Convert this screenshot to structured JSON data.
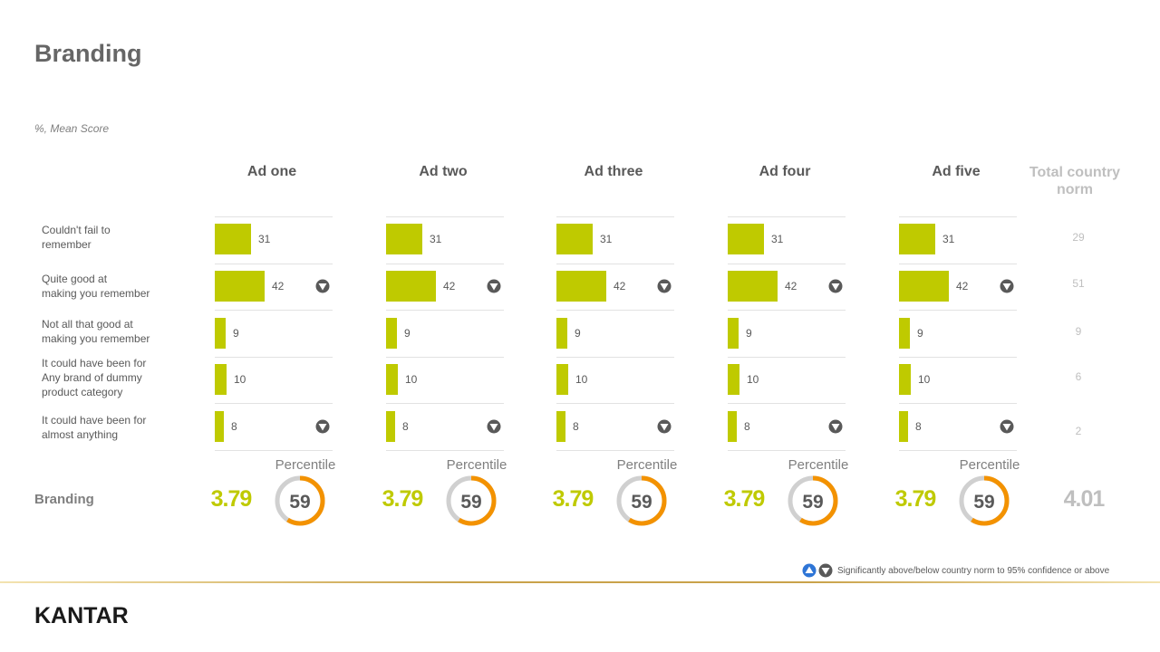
{
  "title": "Branding",
  "subtitle": "%, Mean  Score",
  "norm_header": "Total country norm",
  "branding_label": "Branding",
  "percentile_label": "Percentile",
  "legend_text": "Significantly above/below country norm to 95% confidence or above",
  "logo_text": "KANTAR",
  "colors": {
    "bar": "#bfca00",
    "donut_fill": "#f39200",
    "donut_track": "#d0d0d0",
    "sig_down": "#595959",
    "sig_up": "#2e75d6"
  },
  "chart_data": {
    "type": "bar",
    "orientation": "horizontal",
    "categories": [
      "Couldn't fail to remember",
      "Quite good at making you remember",
      "Not all that good at making you remember",
      "It could have  been for Any brand  of dummy product category",
      "It could have  been for almost anything"
    ],
    "category_lines": [
      [
        "Couldn't fail to",
        "remember"
      ],
      [
        "Quite good at",
        "making you remember"
      ],
      [
        "Not all that good at",
        "making you remember"
      ],
      [
        "It could have  been for",
        "Any brand  of dummy",
        "product category"
      ],
      [
        "It could have  been for",
        "almost anything"
      ]
    ],
    "series": [
      {
        "name": "Ad one",
        "values": [
          31,
          42,
          9,
          10,
          8
        ],
        "significance": [
          "",
          "down",
          "",
          "",
          "down"
        ],
        "mean_score": "3.79",
        "percentile": 59
      },
      {
        "name": "Ad two",
        "values": [
          31,
          42,
          9,
          10,
          8
        ],
        "significance": [
          "",
          "down",
          "",
          "",
          "down"
        ],
        "mean_score": "3.79",
        "percentile": 59
      },
      {
        "name": "Ad three",
        "values": [
          31,
          42,
          9,
          10,
          8
        ],
        "significance": [
          "",
          "down",
          "",
          "",
          "down"
        ],
        "mean_score": "3.79",
        "percentile": 59
      },
      {
        "name": "Ad four",
        "values": [
          31,
          42,
          9,
          10,
          8
        ],
        "significance": [
          "",
          "down",
          "",
          "",
          "down"
        ],
        "mean_score": "3.79",
        "percentile": 59
      },
      {
        "name": "Ad five",
        "values": [
          31,
          42,
          9,
          10,
          8
        ],
        "significance": [
          "",
          "down",
          "",
          "",
          "down"
        ],
        "mean_score": "3.79",
        "percentile": 59
      }
    ],
    "norm": {
      "name": "Total country norm",
      "values": [
        29,
        51,
        9,
        6,
        2
      ],
      "mean_score": "4.01"
    },
    "xlim": [
      0,
      100
    ],
    "grid": false
  }
}
